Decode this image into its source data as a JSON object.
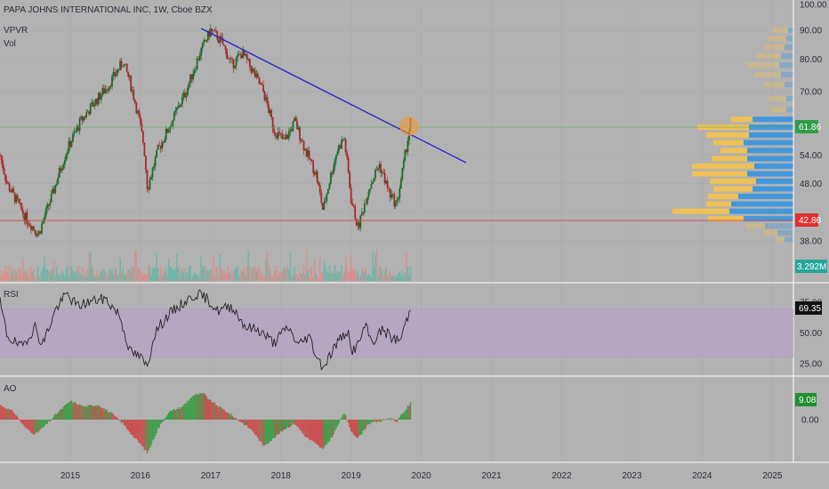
{
  "header": {
    "title": "PAPA JOHNS INTERNATIONAL INC, 1W, Cboe BZX",
    "indicator_1": "VPVR",
    "indicator_2": "Vol"
  },
  "panes": {
    "rsi_label": "RSI",
    "ao_label": "AO"
  },
  "badges": {
    "price": "61.86",
    "support": "42.86",
    "volume": "3.292M",
    "rsi": "69.35",
    "ao": "9.08"
  },
  "colors": {
    "background": "#b2b2b2",
    "candle_up": "#1d6b2a",
    "candle_down": "#a6282a",
    "trendline": "#2929c8",
    "support_line": "#d85050",
    "price_line": "#4caf50",
    "vpvr_yellow": "#f2c14e",
    "vpvr_blue": "#3c96dc",
    "rsi_band": "#b7a2c7",
    "rsi_line": "#222222",
    "ao_up": "#3f9e4a",
    "ao_down": "#c95151",
    "circle": "#f19837"
  },
  "chart_data": [
    {
      "type": "candlestick",
      "title": "PAPA JOHNS INTERNATIONAL INC, 1W, Cboe BZX",
      "y_axis_ticks": [
        "100.00",
        "90.00",
        "80.00",
        "70.00",
        "61.86",
        "54.00",
        "48.00",
        "42.86",
        "38.00"
      ],
      "x_axis_ticks": [
        "2015",
        "2016",
        "2017",
        "2018",
        "2019",
        "2020",
        "2021",
        "2022",
        "2023",
        "2024",
        "2025"
      ],
      "y_scale": "log",
      "last_price": 61.86,
      "support_level": 42.86,
      "price_path": [
        [
          2014.0,
          54
        ],
        [
          2014.1,
          48
        ],
        [
          2014.35,
          42
        ],
        [
          2014.55,
          39
        ],
        [
          2014.75,
          46
        ],
        [
          2014.95,
          55
        ],
        [
          2015.15,
          62
        ],
        [
          2015.35,
          67
        ],
        [
          2015.55,
          72
        ],
        [
          2015.75,
          79
        ],
        [
          2015.85,
          73
        ],
        [
          2015.95,
          65
        ],
        [
          2016.05,
          56
        ],
        [
          2016.1,
          47
        ],
        [
          2016.25,
          55
        ],
        [
          2016.45,
          62
        ],
        [
          2016.65,
          70
        ],
        [
          2016.85,
          82
        ],
        [
          2017.0,
          90
        ],
        [
          2017.15,
          86
        ],
        [
          2017.3,
          78
        ],
        [
          2017.45,
          82
        ],
        [
          2017.6,
          76
        ],
        [
          2017.75,
          70
        ],
        [
          2017.9,
          60
        ],
        [
          2018.05,
          57
        ],
        [
          2018.2,
          62
        ],
        [
          2018.35,
          55
        ],
        [
          2018.5,
          50
        ],
        [
          2018.6,
          43
        ],
        [
          2018.7,
          49
        ],
        [
          2018.8,
          55
        ],
        [
          2018.9,
          58
        ],
        [
          2019.0,
          45
        ],
        [
          2019.1,
          40
        ],
        [
          2019.25,
          47
        ],
        [
          2019.4,
          52
        ],
        [
          2019.55,
          46
        ],
        [
          2019.65,
          44
        ],
        [
          2019.75,
          52
        ],
        [
          2019.85,
          62
        ]
      ],
      "volume_badge": "3.292M"
    },
    {
      "type": "line",
      "title": "RSI",
      "y_axis_ticks": [
        "75.00",
        "50.00",
        "25.00"
      ],
      "band": [
        30,
        70
      ],
      "last_value": 69.35,
      "series": [
        {
          "values": [
            [
              2014.0,
              75
            ],
            [
              2014.1,
              48
            ],
            [
              2014.3,
              38
            ],
            [
              2014.5,
              55
            ],
            [
              2014.6,
              40
            ],
            [
              2014.8,
              70
            ],
            [
              2014.95,
              82
            ],
            [
              2015.1,
              72
            ],
            [
              2015.3,
              76
            ],
            [
              2015.5,
              78
            ],
            [
              2015.7,
              65
            ],
            [
              2015.85,
              35
            ],
            [
              2016.0,
              30
            ],
            [
              2016.1,
              22
            ],
            [
              2016.2,
              50
            ],
            [
              2016.4,
              65
            ],
            [
              2016.6,
              74
            ],
            [
              2016.8,
              82
            ],
            [
              2016.95,
              78
            ],
            [
              2017.1,
              68
            ],
            [
              2017.3,
              72
            ],
            [
              2017.5,
              55
            ],
            [
              2017.7,
              52
            ],
            [
              2017.9,
              42
            ],
            [
              2018.1,
              55
            ],
            [
              2018.25,
              40
            ],
            [
              2018.4,
              48
            ],
            [
              2018.5,
              32
            ],
            [
              2018.6,
              22
            ],
            [
              2018.8,
              42
            ],
            [
              2018.95,
              52
            ],
            [
              2019.0,
              35
            ],
            [
              2019.1,
              40
            ],
            [
              2019.2,
              56
            ],
            [
              2019.3,
              42
            ],
            [
              2019.45,
              53
            ],
            [
              2019.6,
              45
            ],
            [
              2019.7,
              44
            ],
            [
              2019.8,
              62
            ],
            [
              2019.85,
              69.35
            ]
          ]
        }
      ]
    },
    {
      "type": "bar",
      "title": "AO",
      "y_axis_ticks": [
        "0.00"
      ],
      "last_value": 9.08,
      "series": [
        {
          "values": [
            [
              2014.0,
              8
            ],
            [
              2014.2,
              4
            ],
            [
              2014.35,
              -4
            ],
            [
              2014.5,
              -8
            ],
            [
              2014.65,
              -3
            ],
            [
              2014.8,
              3
            ],
            [
              2015.0,
              10
            ],
            [
              2015.2,
              7
            ],
            [
              2015.4,
              8
            ],
            [
              2015.6,
              3
            ],
            [
              2015.75,
              -2
            ],
            [
              2015.9,
              -9
            ],
            [
              2016.0,
              -13
            ],
            [
              2016.1,
              -18
            ],
            [
              2016.25,
              -5
            ],
            [
              2016.4,
              4
            ],
            [
              2016.6,
              7
            ],
            [
              2016.75,
              13
            ],
            [
              2016.9,
              14
            ],
            [
              2017.0,
              10
            ],
            [
              2017.2,
              5
            ],
            [
              2017.35,
              1
            ],
            [
              2017.5,
              -3
            ],
            [
              2017.6,
              -6
            ],
            [
              2017.75,
              -14
            ],
            [
              2017.9,
              -10
            ],
            [
              2018.05,
              -5
            ],
            [
              2018.2,
              -2
            ],
            [
              2018.35,
              -9
            ],
            [
              2018.5,
              -13
            ],
            [
              2018.6,
              -16
            ],
            [
              2018.75,
              -8
            ],
            [
              2018.9,
              4
            ],
            [
              2019.0,
              -6
            ],
            [
              2019.1,
              -10
            ],
            [
              2019.25,
              -2
            ],
            [
              2019.4,
              -1
            ],
            [
              2019.55,
              1
            ],
            [
              2019.65,
              -1
            ],
            [
              2019.75,
              4
            ],
            [
              2019.85,
              9.08
            ]
          ]
        }
      ]
    }
  ]
}
